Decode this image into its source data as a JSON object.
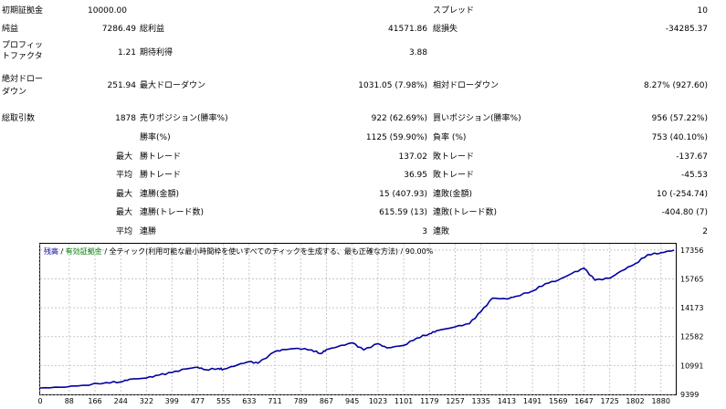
{
  "report": {
    "initial_deposit_label": "初期証拠金",
    "initial_deposit": "10000.00",
    "spread_label": "スプレッド",
    "spread": "10",
    "net_profit_label": "純益",
    "net_profit": "7286.49",
    "gross_profit_label": "総利益",
    "gross_profit": "41571.86",
    "gross_loss_label": "総損失",
    "gross_loss": "-34285.37",
    "profit_factor_label_1": "プロフィッ",
    "profit_factor_label_2": "トファクタ",
    "profit_factor": "1.21",
    "expected_payoff_label": "期待利得",
    "expected_payoff": "3.88",
    "abs_dd_label_1": "絶対ドロー",
    "abs_dd_label_2": "ダウン",
    "abs_dd": "251.94",
    "max_dd_label": "最大ドローダウン",
    "max_dd": "1031.05 (7.98%)",
    "rel_dd_label": "相対ドローダウン",
    "rel_dd": "8.27% (927.60)",
    "total_trades_label": "総取引数",
    "total_trades": "1878",
    "short_label": "売りポジション(勝率%)",
    "short_value": "922 (62.69%)",
    "long_label": "買いポジション(勝率%)",
    "long_value": "956 (57.22%)",
    "win_rate_label": "勝率(%)",
    "win_rate": "1125 (59.90%)",
    "loss_rate_label": "負率 (%)",
    "loss_rate": "753 (40.10%)",
    "max_label": "最大",
    "avg_label": "平均",
    "max_win_trade_label": "勝トレード",
    "max_win_trade": "137.02",
    "max_loss_trade_label": "敗トレード",
    "max_loss_trade": "-137.67",
    "avg_win_trade_label": "勝トレード",
    "avg_win_trade": "36.95",
    "avg_loss_trade_label": "敗トレード",
    "avg_loss_trade": "-45.53",
    "max_consec_win_amt_label": "連勝(金額)",
    "max_consec_win_amt": "15 (407.93)",
    "max_consec_loss_amt_label": "連敗(金額)",
    "max_consec_loss_amt": "10 (-254.74)",
    "max_consec_win_cnt_label": "連勝(トレード数)",
    "max_consec_win_cnt": "615.59 (13)",
    "max_consec_loss_cnt_label": "連敗(トレード数)",
    "max_consec_loss_cnt": "-404.80 (7)",
    "avg_consec_win_label": "連勝",
    "avg_consec_win": "3",
    "avg_consec_loss_label": "連敗",
    "avg_consec_loss": "2"
  },
  "chart_legend": {
    "balance": "残高",
    "sep1": " / ",
    "equity": "有効証拠金",
    "sep2": " / ",
    "model": "全ティック(利用可能な最小時間枠を使いすべてのティックを生成する、最も正確な方法)",
    "sep3": " / ",
    "quality": "90.00%"
  },
  "colors": {
    "line": "#0000a0",
    "grid": "#c8c8c8"
  },
  "chart_data": {
    "type": "line",
    "title": "",
    "series": [
      {
        "name": "残高",
        "x": [
          0,
          60,
          130,
          200,
          244,
          270,
          322,
          360,
          399,
          440,
          477,
          500,
          540,
          555,
          600,
          633,
          660,
          711,
          740,
          780,
          822,
          850,
          867,
          900,
          945,
          980,
          1023,
          1050,
          1101,
          1140,
          1179,
          1200,
          1257,
          1300,
          1335,
          1370,
          1413,
          1440,
          1491,
          1530,
          1569,
          1610,
          1647,
          1680,
          1725,
          1760,
          1802,
          1840,
          1880,
          1920
        ],
        "values": [
          9750,
          9790,
          9900,
          10050,
          10090,
          10230,
          10300,
          10460,
          10600,
          10800,
          10900,
          10760,
          10830,
          10780,
          11040,
          11200,
          11120,
          11760,
          11870,
          11940,
          11850,
          11650,
          11870,
          12020,
          12240,
          11850,
          12190,
          11960,
          12100,
          12500,
          12740,
          12900,
          13120,
          13300,
          13960,
          14700,
          14660,
          14800,
          15100,
          15500,
          15700,
          16060,
          16350,
          15700,
          15800,
          16200,
          16600,
          17100,
          17200,
          17350
        ]
      }
    ],
    "x_ticks": [
      "0",
      "88",
      "166",
      "244",
      "322",
      "399",
      "477",
      "555",
      "633",
      "711",
      "789",
      "867",
      "945",
      "1023",
      "1101",
      "1179",
      "1257",
      "1335",
      "1413",
      "1491",
      "1569",
      "1647",
      "1725",
      "1802",
      "1880"
    ],
    "y_ticks": [
      "17356",
      "15765",
      "14173",
      "12582",
      "10991",
      "9399"
    ],
    "xlim": [
      0,
      1925
    ],
    "ylim": [
      9399,
      17700
    ],
    "grid": true
  }
}
